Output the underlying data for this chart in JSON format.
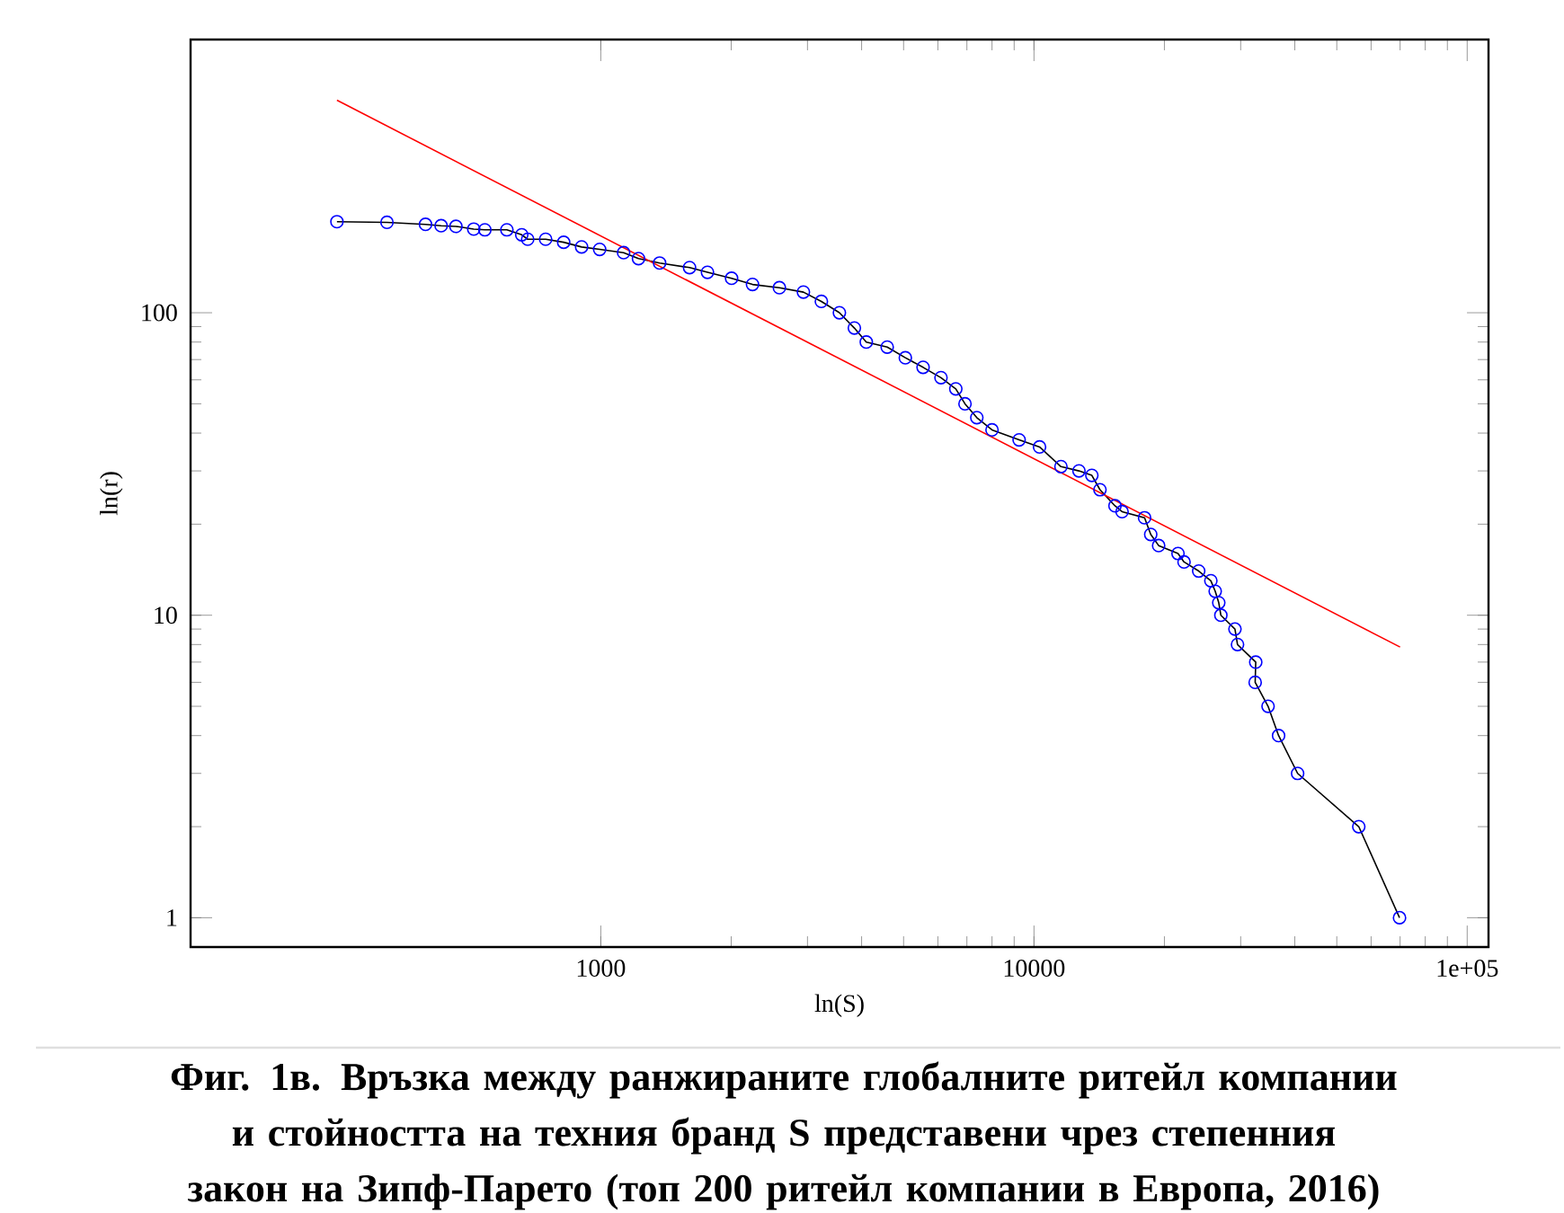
{
  "chart_data": {
    "type": "line",
    "title": "**Фиг. 1в. Връзка между ранжираните глобалните ритейл компании и стойността на техния бранд S представени чрез степенния закон на Зипф-Парето (топ 200 ритейл компании в Европа, 2016)**",
    "xlabel": "ln(S)",
    "ylabel": "ln(r)",
    "log": "xy",
    "marker": "circle",
    "grid": false,
    "xlim": [
      113,
      112000
    ],
    "ylim": [
      0.8,
      800
    ],
    "xticks": [
      1000,
      10000,
      {
        "value": 100000,
        "label": "1e+05"
      }
    ],
    "yticks": [
      1,
      10,
      100
    ],
    "series": [
      {
        "color": "#0000ff",
        "x": [
          246,
          321,
          394,
          428,
          463,
          509,
          540,
          607,
          657,
          678,
          746,
          821,
          903,
          994,
          1129,
          1222,
          1367,
          1603,
          1763,
          2004,
          2240,
          2584,
          2936,
          3230,
          3555,
          3849,
          4101,
          4583,
          5047,
          5546,
          6100,
          6600,
          6930,
          7380,
          8000,
          9240,
          10300,
          11540,
          12700,
          13600,
          14200,
          15380,
          15970,
          18000,
          18600,
          19400,
          21500,
          22200,
          24000,
          25600,
          26200,
          26700,
          27000,
          29100,
          29500,
          32500,
          32400,
          34700,
          36700,
          40600,
          56200,
          69800
        ],
        "values": [
          200,
          199,
          196,
          194,
          193,
          189,
          188,
          188,
          181,
          175,
          175,
          171,
          165,
          162,
          158,
          151,
          146,
          141,
          136,
          130,
          124,
          121,
          117,
          109,
          100,
          89,
          80,
          77,
          71,
          66,
          61,
          56,
          50,
          45,
          41,
          38,
          36,
          31,
          30,
          29,
          26,
          23,
          22,
          21,
          18.5,
          17,
          16,
          15,
          14,
          13,
          12,
          11,
          10,
          9,
          8,
          7,
          6,
          5,
          4,
          3,
          2,
          1
        ]
      },
      {
        "color": "#ff0000",
        "marker": "none",
        "x": [
          246,
          70000
        ],
        "values": [
          504,
          7.85
        ]
      }
    ]
  }
}
